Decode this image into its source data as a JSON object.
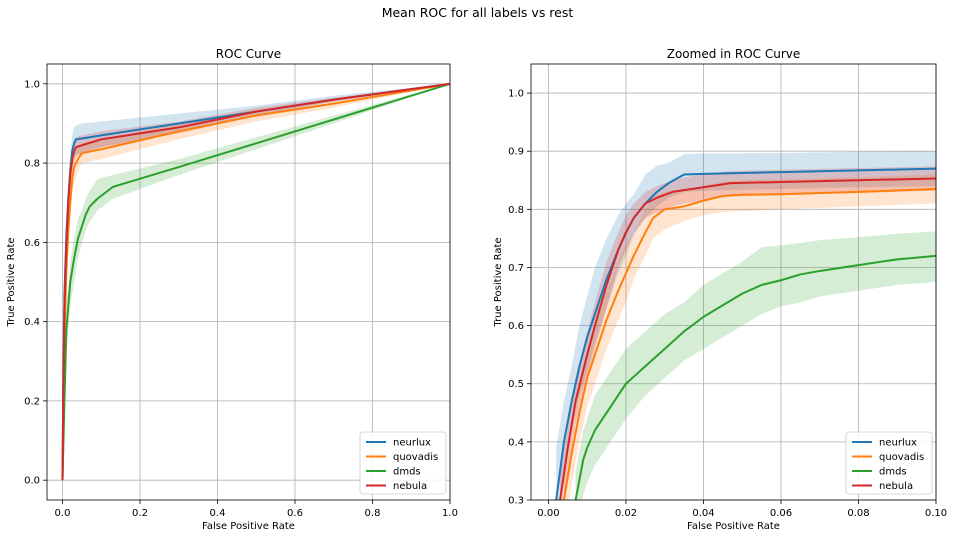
{
  "suptitle": "Mean ROC for all labels vs rest",
  "colors": {
    "neurlux": "#1f77b4",
    "quovadis": "#ff7f0e",
    "dmds": "#2ca02c",
    "nebula": "#d62728",
    "grid": "#b0b0b0"
  },
  "chart_data": [
    {
      "type": "line",
      "title": "ROC Curve",
      "xlabel": "False Positive Rate",
      "ylabel": "True Positive Rate",
      "xlim": [
        -0.04,
        1.0
      ],
      "ylim": [
        -0.05,
        1.05
      ],
      "xticks": [
        0.0,
        0.2,
        0.4,
        0.6,
        0.8,
        1.0
      ],
      "xtick_labels": [
        "0.0",
        "0.2",
        "0.4",
        "0.6",
        "0.8",
        "1.0"
      ],
      "yticks": [
        0.0,
        0.2,
        0.4,
        0.6,
        0.8,
        1.0
      ],
      "ytick_labels": [
        "0.0",
        "0.2",
        "0.4",
        "0.6",
        "0.8",
        "1.0"
      ],
      "grid": true,
      "legend_position": "lower-right",
      "series": [
        {
          "name": "neurlux",
          "color_key": "neurlux",
          "x": [
            0,
            0.002,
            0.005,
            0.01,
            0.015,
            0.02,
            0.025,
            0.03,
            0.035,
            0.05,
            0.1,
            0.3,
            0.5,
            0.7,
            1.0
          ],
          "y": [
            0,
            0.25,
            0.47,
            0.62,
            0.71,
            0.78,
            0.83,
            0.85,
            0.86,
            0.862,
            0.87,
            0.9,
            0.93,
            0.96,
            1.0
          ],
          "lo": [
            0,
            0.2,
            0.42,
            0.56,
            0.66,
            0.74,
            0.79,
            0.81,
            0.82,
            0.825,
            0.84,
            0.88,
            0.92,
            0.955,
            1.0
          ],
          "hi": [
            0,
            0.3,
            0.52,
            0.67,
            0.76,
            0.82,
            0.87,
            0.89,
            0.895,
            0.9,
            0.905,
            0.925,
            0.945,
            0.97,
            1.0
          ]
        },
        {
          "name": "quovadis",
          "color_key": "quovadis",
          "x": [
            0,
            0.002,
            0.005,
            0.01,
            0.015,
            0.02,
            0.025,
            0.03,
            0.04,
            0.05,
            0.1,
            0.3,
            0.5,
            0.7,
            1.0
          ],
          "y": [
            0,
            0.18,
            0.36,
            0.53,
            0.63,
            0.7,
            0.76,
            0.79,
            0.81,
            0.825,
            0.835,
            0.88,
            0.92,
            0.95,
            1.0
          ],
          "lo": [
            0,
            0.14,
            0.32,
            0.48,
            0.59,
            0.66,
            0.72,
            0.75,
            0.78,
            0.8,
            0.81,
            0.86,
            0.905,
            0.94,
            1.0
          ],
          "hi": [
            0,
            0.22,
            0.4,
            0.58,
            0.67,
            0.74,
            0.8,
            0.83,
            0.84,
            0.85,
            0.86,
            0.9,
            0.935,
            0.96,
            1.0
          ]
        },
        {
          "name": "dmds",
          "color_key": "dmds",
          "x": [
            0,
            0.005,
            0.01,
            0.02,
            0.03,
            0.04,
            0.05,
            0.06,
            0.07,
            0.09,
            0.13,
            0.3,
            0.5,
            0.7,
            1.0
          ],
          "y": [
            0,
            0.2,
            0.38,
            0.5,
            0.56,
            0.61,
            0.64,
            0.67,
            0.69,
            0.71,
            0.74,
            0.79,
            0.85,
            0.91,
            1.0
          ],
          "lo": [
            0,
            0.14,
            0.32,
            0.44,
            0.5,
            0.56,
            0.6,
            0.63,
            0.65,
            0.68,
            0.71,
            0.77,
            0.835,
            0.9,
            1.0
          ],
          "hi": [
            0,
            0.26,
            0.44,
            0.55,
            0.61,
            0.66,
            0.68,
            0.71,
            0.73,
            0.76,
            0.77,
            0.81,
            0.865,
            0.92,
            1.0
          ]
        },
        {
          "name": "nebula",
          "color_key": "nebula",
          "x": [
            0,
            0.002,
            0.005,
            0.01,
            0.015,
            0.02,
            0.025,
            0.03,
            0.035,
            0.05,
            0.1,
            0.3,
            0.5,
            0.7,
            1.0
          ],
          "y": [
            0,
            0.22,
            0.43,
            0.59,
            0.7,
            0.77,
            0.81,
            0.83,
            0.84,
            0.845,
            0.86,
            0.89,
            0.93,
            0.96,
            1.0
          ],
          "lo": [
            0,
            0.18,
            0.39,
            0.55,
            0.66,
            0.74,
            0.78,
            0.8,
            0.815,
            0.825,
            0.84,
            0.875,
            0.92,
            0.955,
            1.0
          ],
          "hi": [
            0,
            0.26,
            0.47,
            0.63,
            0.74,
            0.8,
            0.84,
            0.86,
            0.865,
            0.87,
            0.88,
            0.905,
            0.94,
            0.965,
            1.0
          ]
        }
      ]
    },
    {
      "type": "line",
      "title": "Zoomed in ROC Curve",
      "xlabel": "False Positive Rate",
      "ylabel": "True Positive Rate",
      "xlim": [
        -0.0045,
        0.1
      ],
      "ylim": [
        0.3,
        1.05
      ],
      "xticks": [
        0.0,
        0.02,
        0.04,
        0.06,
        0.08,
        0.1
      ],
      "xtick_labels": [
        "0.00",
        "0.02",
        "0.04",
        "0.06",
        "0.08",
        "0.10"
      ],
      "yticks": [
        0.3,
        0.4,
        0.5,
        0.6,
        0.7,
        0.8,
        0.9,
        1.0
      ],
      "ytick_labels": [
        "0.3",
        "0.4",
        "0.5",
        "0.6",
        "0.7",
        "0.8",
        "0.9",
        "1.0"
      ],
      "grid": true,
      "legend_position": "lower-right",
      "series": [
        {
          "name": "neurlux",
          "color_key": "neurlux",
          "x": [
            0.002,
            0.004,
            0.006,
            0.008,
            0.01,
            0.012,
            0.015,
            0.018,
            0.02,
            0.022,
            0.025,
            0.028,
            0.031,
            0.035,
            0.04,
            0.06,
            0.08,
            0.1
          ],
          "y": [
            0.3,
            0.4,
            0.47,
            0.53,
            0.58,
            0.62,
            0.68,
            0.73,
            0.76,
            0.785,
            0.81,
            0.83,
            0.845,
            0.86,
            0.861,
            0.864,
            0.867,
            0.87
          ],
          "lo": [
            0.2,
            0.34,
            0.42,
            0.48,
            0.52,
            0.57,
            0.63,
            0.69,
            0.72,
            0.755,
            0.785,
            0.805,
            0.82,
            0.83,
            0.832,
            0.835,
            0.838,
            0.84
          ],
          "hi": [
            0.39,
            0.47,
            0.53,
            0.6,
            0.65,
            0.7,
            0.75,
            0.79,
            0.81,
            0.825,
            0.86,
            0.875,
            0.88,
            0.895,
            0.896,
            0.897,
            0.899,
            0.9
          ]
        },
        {
          "name": "quovadis",
          "color_key": "quovadis",
          "x": [
            0.004,
            0.006,
            0.008,
            0.01,
            0.012,
            0.015,
            0.018,
            0.02,
            0.022,
            0.025,
            0.027,
            0.03,
            0.035,
            0.04,
            0.045,
            0.05,
            0.06,
            0.08,
            0.1
          ],
          "y": [
            0.3,
            0.38,
            0.45,
            0.51,
            0.55,
            0.61,
            0.66,
            0.69,
            0.72,
            0.76,
            0.785,
            0.8,
            0.805,
            0.815,
            0.823,
            0.825,
            0.826,
            0.83,
            0.835
          ],
          "lo": [
            0.25,
            0.33,
            0.4,
            0.46,
            0.5,
            0.56,
            0.61,
            0.64,
            0.68,
            0.72,
            0.75,
            0.765,
            0.78,
            0.79,
            0.795,
            0.797,
            0.8,
            0.805,
            0.81
          ],
          "hi": [
            0.35,
            0.43,
            0.5,
            0.56,
            0.6,
            0.66,
            0.71,
            0.74,
            0.76,
            0.8,
            0.82,
            0.83,
            0.835,
            0.84,
            0.848,
            0.85,
            0.852,
            0.855,
            0.86
          ]
        },
        {
          "name": "dmds",
          "color_key": "dmds",
          "x": [
            0.007,
            0.009,
            0.01,
            0.012,
            0.015,
            0.018,
            0.02,
            0.025,
            0.03,
            0.035,
            0.04,
            0.045,
            0.05,
            0.055,
            0.06,
            0.065,
            0.07,
            0.08,
            0.09,
            0.1
          ],
          "y": [
            0.3,
            0.37,
            0.39,
            0.42,
            0.45,
            0.48,
            0.5,
            0.53,
            0.56,
            0.59,
            0.615,
            0.635,
            0.655,
            0.67,
            0.678,
            0.688,
            0.694,
            0.704,
            0.714,
            0.72
          ],
          "lo": [
            0.25,
            0.31,
            0.33,
            0.36,
            0.39,
            0.42,
            0.44,
            0.48,
            0.51,
            0.54,
            0.56,
            0.58,
            0.6,
            0.62,
            0.633,
            0.64,
            0.65,
            0.66,
            0.67,
            0.675
          ],
          "hi": [
            0.35,
            0.42,
            0.44,
            0.48,
            0.51,
            0.54,
            0.56,
            0.59,
            0.62,
            0.64,
            0.67,
            0.69,
            0.71,
            0.735,
            0.738,
            0.742,
            0.747,
            0.752,
            0.758,
            0.762
          ]
        },
        {
          "name": "nebula",
          "color_key": "nebula",
          "x": [
            0.003,
            0.005,
            0.007,
            0.01,
            0.012,
            0.015,
            0.018,
            0.02,
            0.022,
            0.025,
            0.028,
            0.032,
            0.035,
            0.04,
            0.047,
            0.06,
            0.08,
            0.1
          ],
          "y": [
            0.3,
            0.39,
            0.47,
            0.55,
            0.6,
            0.67,
            0.73,
            0.76,
            0.785,
            0.81,
            0.82,
            0.83,
            0.833,
            0.838,
            0.845,
            0.847,
            0.85,
            0.853
          ],
          "lo": [
            0.26,
            0.35,
            0.43,
            0.51,
            0.56,
            0.63,
            0.7,
            0.73,
            0.76,
            0.785,
            0.795,
            0.805,
            0.81,
            0.815,
            0.822,
            0.825,
            0.828,
            0.832
          ],
          "hi": [
            0.34,
            0.43,
            0.51,
            0.59,
            0.64,
            0.71,
            0.76,
            0.79,
            0.81,
            0.83,
            0.84,
            0.85,
            0.855,
            0.86,
            0.866,
            0.868,
            0.871,
            0.874
          ]
        }
      ]
    }
  ]
}
